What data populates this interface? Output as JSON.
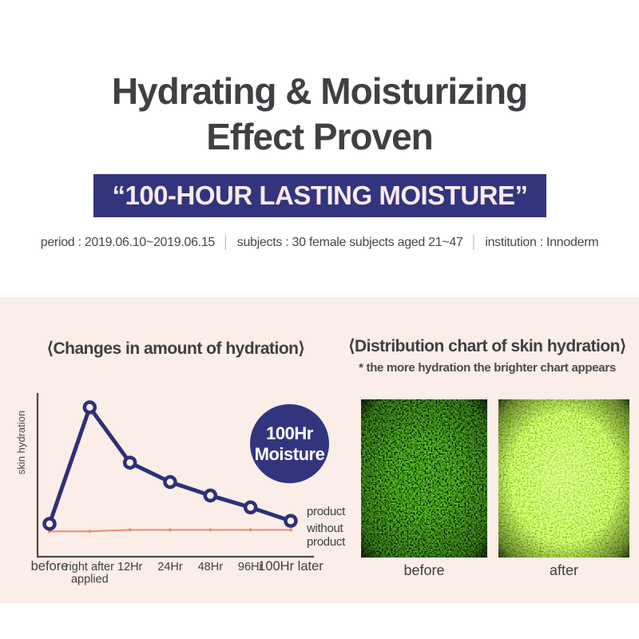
{
  "header": {
    "title_line1": "Hydrating & Moisturizing",
    "title_line2": "Effect Proven"
  },
  "banner": {
    "text": "“100-HOUR LASTING MOISTURE”"
  },
  "study_info": {
    "parts": [
      "period : 2019.06.10~2019.06.15",
      "subjects : 30 female subjects aged 21~47",
      "institution : Innoderm"
    ],
    "separator": "│"
  },
  "hydration_section": {
    "left": {
      "heading": "⟨Changes in amount of hydration⟩",
      "badge": {
        "line1": "100Hr",
        "line2": "Moisture"
      }
    },
    "right": {
      "heading": "⟨Distribution chart of skin hydration⟩",
      "note": "* the more hydration the brighter chart appears",
      "before_label": "before",
      "after_label": "after"
    }
  },
  "chart_data": {
    "type": "line",
    "title": "Changes in amount of hydration",
    "ylabel": "skin hydration",
    "ylim": [
      0,
      110
    ],
    "grid": false,
    "legend_position": "right-of-line-ends",
    "x_categories": [
      "before",
      "right after\napplied",
      "12Hr",
      "24Hr",
      "48Hr",
      "96Hr",
      "100Hr later"
    ],
    "series": [
      {
        "name": "product",
        "color": "#2e3076",
        "marker": "open-circle",
        "values": [
          22,
          100,
          63,
          50,
          41,
          33,
          24
        ]
      },
      {
        "name": "without product",
        "color": "#e98c74",
        "marker": "dot",
        "values": [
          17,
          17,
          18,
          18,
          18,
          18,
          18
        ]
      }
    ]
  },
  "colors": {
    "navy": "#32357e",
    "accent_orange": "#e98c74",
    "section_bg": "#fbede7",
    "title_text": "#3f4043",
    "body_text": "#48484a"
  }
}
